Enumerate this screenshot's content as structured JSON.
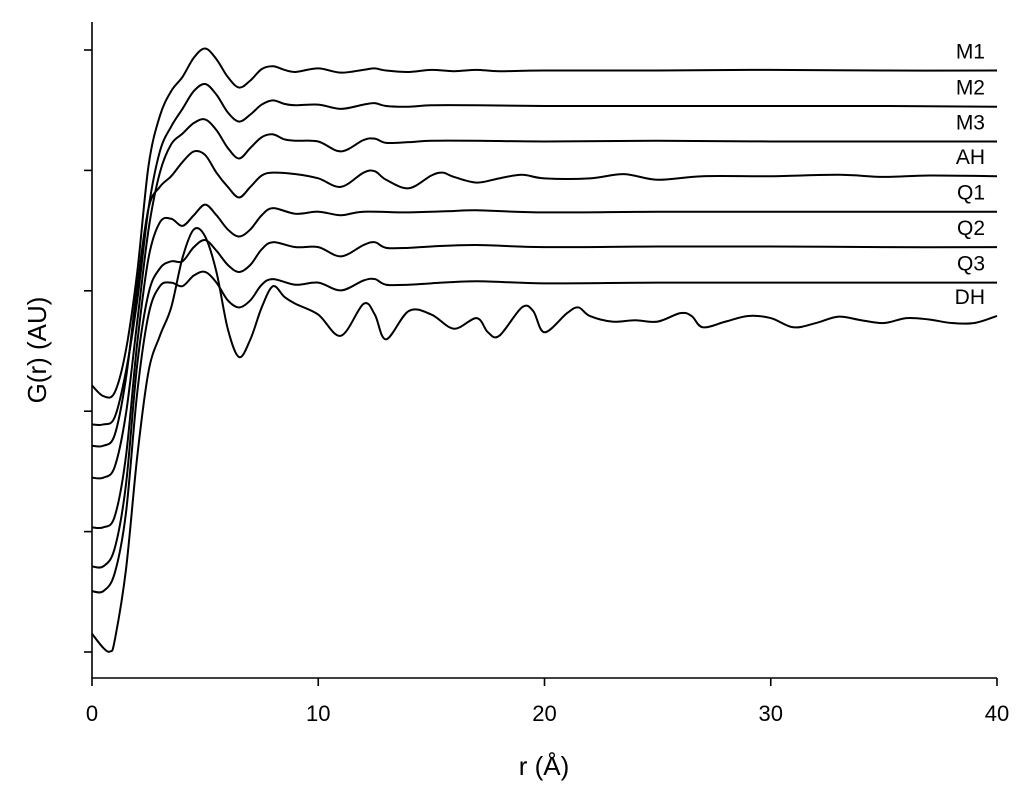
{
  "chart_data": {
    "type": "line",
    "title": "",
    "xlabel": "r (Å)",
    "ylabel": "G(r) (AU)",
    "xlim": [
      0,
      40
    ],
    "xticks": [
      0,
      10,
      20,
      30,
      40
    ],
    "y_tick_labels": "none",
    "grid": false,
    "legend": "none (series labelled at right end of each curve)",
    "series": [
      {
        "name": "M1",
        "points": [
          [
            0,
            -0.2
          ],
          [
            0.5,
            -0.35
          ],
          [
            1,
            -0.3
          ],
          [
            1.5,
            0.3
          ],
          [
            2,
            1.4
          ],
          [
            2.5,
            2.9
          ],
          [
            3,
            3.6
          ],
          [
            3.5,
            3.95
          ],
          [
            4,
            4.15
          ],
          [
            4.5,
            4.42
          ],
          [
            5,
            4.55
          ],
          [
            5.5,
            4.4
          ],
          [
            6,
            4.15
          ],
          [
            6.5,
            4.0
          ],
          [
            7,
            4.1
          ],
          [
            7.5,
            4.26
          ],
          [
            8,
            4.3
          ],
          [
            8.5,
            4.25
          ],
          [
            9,
            4.22
          ],
          [
            10,
            4.27
          ],
          [
            11,
            4.21
          ],
          [
            12,
            4.25
          ],
          [
            12.5,
            4.27
          ],
          [
            13,
            4.24
          ],
          [
            14,
            4.22
          ],
          [
            15,
            4.25
          ],
          [
            16,
            4.23
          ],
          [
            17,
            4.25
          ],
          [
            18,
            4.23
          ],
          [
            20,
            4.24
          ],
          [
            25,
            4.24
          ],
          [
            30,
            4.25
          ],
          [
            35,
            4.24
          ],
          [
            40,
            4.24
          ]
        ]
      },
      {
        "name": "M2",
        "points": [
          [
            0,
            -0.75
          ],
          [
            0.5,
            -0.75
          ],
          [
            1,
            -0.65
          ],
          [
            1.5,
            0.0
          ],
          [
            2,
            1.0
          ],
          [
            2.5,
            2.3
          ],
          [
            3,
            3.1
          ],
          [
            3.5,
            3.45
          ],
          [
            4,
            3.7
          ],
          [
            4.5,
            3.95
          ],
          [
            5,
            4.05
          ],
          [
            5.5,
            3.9
          ],
          [
            6,
            3.65
          ],
          [
            6.5,
            3.52
          ],
          [
            7,
            3.62
          ],
          [
            7.5,
            3.76
          ],
          [
            8,
            3.82
          ],
          [
            8.5,
            3.77
          ],
          [
            9,
            3.75
          ],
          [
            10,
            3.76
          ],
          [
            11,
            3.7
          ],
          [
            12,
            3.76
          ],
          [
            12.5,
            3.78
          ],
          [
            13,
            3.74
          ],
          [
            14,
            3.73
          ],
          [
            15,
            3.75
          ],
          [
            17,
            3.75
          ],
          [
            20,
            3.74
          ],
          [
            25,
            3.74
          ],
          [
            30,
            3.74
          ],
          [
            35,
            3.74
          ],
          [
            40,
            3.73
          ]
        ]
      },
      {
        "name": "M3",
        "points": [
          [
            0,
            -1.5
          ],
          [
            0.5,
            -1.5
          ],
          [
            1,
            -1.35
          ],
          [
            1.5,
            -0.6
          ],
          [
            2,
            0.7
          ],
          [
            2.5,
            2.0
          ],
          [
            3,
            2.8
          ],
          [
            3.5,
            3.2
          ],
          [
            4,
            3.35
          ],
          [
            4.5,
            3.5
          ],
          [
            5,
            3.55
          ],
          [
            5.5,
            3.4
          ],
          [
            6,
            3.15
          ],
          [
            6.5,
            3.0
          ],
          [
            7,
            3.15
          ],
          [
            7.5,
            3.3
          ],
          [
            8,
            3.34
          ],
          [
            8.5,
            3.27
          ],
          [
            9,
            3.25
          ],
          [
            10,
            3.24
          ],
          [
            11,
            3.1
          ],
          [
            12,
            3.26
          ],
          [
            12.5,
            3.28
          ],
          [
            13,
            3.22
          ],
          [
            14,
            3.23
          ],
          [
            15,
            3.25
          ],
          [
            17,
            3.25
          ],
          [
            20,
            3.24
          ],
          [
            25,
            3.25
          ],
          [
            30,
            3.24
          ],
          [
            35,
            3.24
          ],
          [
            40,
            3.24
          ]
        ]
      },
      {
        "name": "AH",
        "points": [
          [
            0,
            -1.05
          ],
          [
            0.5,
            -1.05
          ],
          [
            1,
            -0.9
          ],
          [
            1.5,
            -0.1
          ],
          [
            2,
            1.2
          ],
          [
            2.5,
            2.3
          ],
          [
            3,
            2.6
          ],
          [
            3.5,
            2.75
          ],
          [
            4,
            2.95
          ],
          [
            4.5,
            3.1
          ],
          [
            5,
            3.05
          ],
          [
            5.5,
            2.8
          ],
          [
            6,
            2.6
          ],
          [
            6.5,
            2.45
          ],
          [
            7,
            2.6
          ],
          [
            7.5,
            2.76
          ],
          [
            8,
            2.8
          ],
          [
            9,
            2.78
          ],
          [
            10,
            2.72
          ],
          [
            11,
            2.6
          ],
          [
            12,
            2.8
          ],
          [
            12.5,
            2.82
          ],
          [
            13,
            2.7
          ],
          [
            14,
            2.58
          ],
          [
            15,
            2.76
          ],
          [
            15.5,
            2.8
          ],
          [
            16,
            2.74
          ],
          [
            17,
            2.66
          ],
          [
            18,
            2.72
          ],
          [
            19,
            2.77
          ],
          [
            20,
            2.72
          ],
          [
            22,
            2.72
          ],
          [
            23.5,
            2.78
          ],
          [
            25,
            2.7
          ],
          [
            27,
            2.75
          ],
          [
            30,
            2.75
          ],
          [
            33,
            2.77
          ],
          [
            35,
            2.74
          ],
          [
            37,
            2.76
          ],
          [
            40,
            2.75
          ]
        ]
      },
      {
        "name": "Q1",
        "points": [
          [
            0,
            -2.2
          ],
          [
            0.5,
            -2.2
          ],
          [
            1,
            -2.05
          ],
          [
            1.5,
            -1.2
          ],
          [
            2,
            0.4
          ],
          [
            2.5,
            1.6
          ],
          [
            3,
            2.1
          ],
          [
            3.5,
            2.15
          ],
          [
            4,
            2.05
          ],
          [
            4.5,
            2.2
          ],
          [
            5,
            2.35
          ],
          [
            5.5,
            2.2
          ],
          [
            6,
            2.0
          ],
          [
            6.5,
            1.9
          ],
          [
            7,
            2.0
          ],
          [
            7.5,
            2.2
          ],
          [
            8,
            2.3
          ],
          [
            9,
            2.22
          ],
          [
            10,
            2.25
          ],
          [
            11,
            2.2
          ],
          [
            12,
            2.25
          ],
          [
            14,
            2.24
          ],
          [
            16,
            2.26
          ],
          [
            17,
            2.27
          ],
          [
            20,
            2.24
          ],
          [
            25,
            2.25
          ],
          [
            30,
            2.25
          ],
          [
            35,
            2.25
          ],
          [
            40,
            2.25
          ]
        ]
      },
      {
        "name": "Q2",
        "points": [
          [
            0,
            -2.75
          ],
          [
            0.5,
            -2.75
          ],
          [
            1,
            -2.5
          ],
          [
            1.5,
            -1.6
          ],
          [
            2,
            0.1
          ],
          [
            2.5,
            1.1
          ],
          [
            3,
            1.45
          ],
          [
            3.5,
            1.55
          ],
          [
            4,
            1.55
          ],
          [
            4.5,
            1.75
          ],
          [
            5,
            1.85
          ],
          [
            5.5,
            1.7
          ],
          [
            6,
            1.5
          ],
          [
            6.5,
            1.4
          ],
          [
            7,
            1.5
          ],
          [
            7.5,
            1.72
          ],
          [
            8,
            1.82
          ],
          [
            9,
            1.75
          ],
          [
            10,
            1.75
          ],
          [
            11,
            1.62
          ],
          [
            12,
            1.78
          ],
          [
            12.5,
            1.82
          ],
          [
            13,
            1.74
          ],
          [
            14,
            1.74
          ],
          [
            15,
            1.76
          ],
          [
            17,
            1.78
          ],
          [
            20,
            1.75
          ],
          [
            25,
            1.76
          ],
          [
            30,
            1.76
          ],
          [
            35,
            1.75
          ],
          [
            40,
            1.75
          ]
        ]
      },
      {
        "name": "Q3",
        "points": [
          [
            0,
            -3.1
          ],
          [
            0.5,
            -3.1
          ],
          [
            1,
            -2.85
          ],
          [
            1.5,
            -2.0
          ],
          [
            2,
            -0.3
          ],
          [
            2.5,
            0.8
          ],
          [
            3,
            1.2
          ],
          [
            3.5,
            1.25
          ],
          [
            4,
            1.2
          ],
          [
            4.5,
            1.35
          ],
          [
            5,
            1.4
          ],
          [
            5.5,
            1.25
          ],
          [
            6,
            1.0
          ],
          [
            6.5,
            0.9
          ],
          [
            7,
            1.0
          ],
          [
            7.5,
            1.22
          ],
          [
            8,
            1.3
          ],
          [
            9,
            1.22
          ],
          [
            10,
            1.25
          ],
          [
            11,
            1.14
          ],
          [
            12,
            1.28
          ],
          [
            12.5,
            1.3
          ],
          [
            13,
            1.22
          ],
          [
            14,
            1.22
          ],
          [
            15,
            1.24
          ],
          [
            17,
            1.27
          ],
          [
            20,
            1.24
          ],
          [
            25,
            1.25
          ],
          [
            30,
            1.25
          ],
          [
            35,
            1.25
          ],
          [
            40,
            1.25
          ]
        ]
      },
      {
        "name": "DH",
        "points": [
          [
            0,
            -3.7
          ],
          [
            0.5,
            -3.9
          ],
          [
            0.8,
            -3.95
          ],
          [
            1,
            -3.8
          ],
          [
            1.5,
            -2.8
          ],
          [
            2,
            -1.2
          ],
          [
            2.5,
            0.0
          ],
          [
            3,
            0.5
          ],
          [
            3.5,
            0.9
          ],
          [
            4,
            1.6
          ],
          [
            4.5,
            2.0
          ],
          [
            5,
            1.9
          ],
          [
            5.5,
            1.4
          ],
          [
            6,
            0.6
          ],
          [
            6.5,
            0.2
          ],
          [
            7,
            0.45
          ],
          [
            7.5,
            0.9
          ],
          [
            8,
            1.2
          ],
          [
            8.5,
            1.05
          ],
          [
            9,
            0.95
          ],
          [
            10,
            0.8
          ],
          [
            11,
            0.5
          ],
          [
            12,
            0.95
          ],
          [
            12.5,
            0.8
          ],
          [
            13,
            0.45
          ],
          [
            14,
            0.85
          ],
          [
            15,
            0.8
          ],
          [
            16,
            0.6
          ],
          [
            17,
            0.75
          ],
          [
            17.5,
            0.55
          ],
          [
            18,
            0.5
          ],
          [
            19,
            0.9
          ],
          [
            19.5,
            0.85
          ],
          [
            20,
            0.55
          ],
          [
            21,
            0.82
          ],
          [
            21.5,
            0.9
          ],
          [
            22,
            0.78
          ],
          [
            23,
            0.7
          ],
          [
            24,
            0.72
          ],
          [
            25,
            0.7
          ],
          [
            26,
            0.82
          ],
          [
            26.5,
            0.78
          ],
          [
            27,
            0.62
          ],
          [
            28,
            0.7
          ],
          [
            29,
            0.78
          ],
          [
            30,
            0.75
          ],
          [
            31,
            0.62
          ],
          [
            32,
            0.68
          ],
          [
            33,
            0.77
          ],
          [
            34,
            0.72
          ],
          [
            35,
            0.68
          ],
          [
            36,
            0.75
          ],
          [
            37,
            0.73
          ],
          [
            38,
            0.68
          ],
          [
            39,
            0.68
          ],
          [
            40,
            0.78
          ]
        ]
      }
    ]
  }
}
